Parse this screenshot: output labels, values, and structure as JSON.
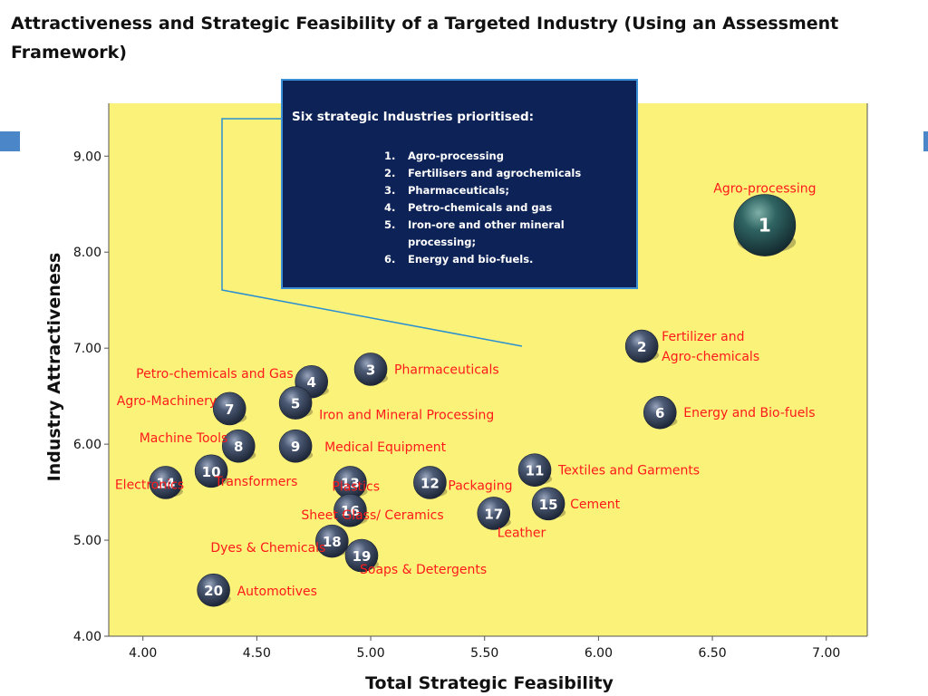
{
  "slide": {
    "title": "Attractiveness and Strategic Feasibility of a Targeted Industry (Using   an Assessment Framework)"
  },
  "callout": {
    "title": "Six strategic Industries prioritised:",
    "items": [
      {
        "num": "1.",
        "text": "Agro-processing"
      },
      {
        "num": "2.",
        "text": "Fertilisers and agrochemicals"
      },
      {
        "num": "3.",
        "text": "Pharmaceuticals;"
      },
      {
        "num": "4.",
        "text": " Petro-chemicals and gas"
      },
      {
        "num": "5.",
        "text": "Iron-ore and other mineral processing;"
      },
      {
        "num": "6.",
        "text": "Energy and bio-fuels."
      }
    ]
  },
  "colors": {
    "plot_background": "#fbf27a",
    "bubble": "#2f3d55",
    "label_text": "#ff1a1a",
    "callout_background": "#0d2357",
    "callout_border": "#3a8fd6",
    "connector": "#2a8fd0",
    "accent_square": "#4a86c8"
  },
  "chart_data": {
    "type": "scatter",
    "title": "",
    "xlabel": "Total Strategic Feasibility",
    "ylabel": "Industry Attractiveness",
    "xlim": [
      3.85,
      7.18
    ],
    "ylim": [
      4.0,
      9.55
    ],
    "xticks": [
      "4.00",
      "4.50",
      "5.00",
      "5.50",
      "6.00",
      "6.50",
      "7.00"
    ],
    "yticks": [
      "4.00",
      "5.00",
      "6.00",
      "7.00",
      "8.00",
      "9.00"
    ],
    "grid": false,
    "points": [
      {
        "id": "1",
        "label": "Agro-processing",
        "x": 6.73,
        "y": 8.28
      },
      {
        "id": "2",
        "label": "Fertilizer and Agro-chemicals",
        "x": 6.19,
        "y": 7.02
      },
      {
        "id": "3",
        "label": "Pharmaceuticals",
        "x": 5.0,
        "y": 6.78
      },
      {
        "id": "4",
        "label": "Petro-chemicals and Gas",
        "x": 4.74,
        "y": 6.65
      },
      {
        "id": "5",
        "label": "Iron and Mineral Processing",
        "x": 4.67,
        "y": 6.43
      },
      {
        "id": "6",
        "label": "Energy and Bio-fuels",
        "x": 6.27,
        "y": 6.33
      },
      {
        "id": "7",
        "label": "Agro-Machinery",
        "x": 4.38,
        "y": 6.37
      },
      {
        "id": "8",
        "label": "Machine Tools",
        "x": 4.42,
        "y": 5.98
      },
      {
        "id": "9",
        "label": "Medical Equipment",
        "x": 4.67,
        "y": 5.98
      },
      {
        "id": "10",
        "label": "Transformers",
        "x": 4.3,
        "y": 5.72
      },
      {
        "id": "11",
        "label": "Textiles and Garments",
        "x": 5.72,
        "y": 5.73
      },
      {
        "id": "12",
        "label": "Packaging",
        "x": 5.26,
        "y": 5.6
      },
      {
        "id": "13",
        "label": "Plastics",
        "x": 4.91,
        "y": 5.6
      },
      {
        "id": "14",
        "label": "Electronics",
        "x": 4.1,
        "y": 5.6
      },
      {
        "id": "15",
        "label": "Cement",
        "x": 5.78,
        "y": 5.38
      },
      {
        "id": "16",
        "label": "Sheet Glass/ Ceramics",
        "x": 4.91,
        "y": 5.31
      },
      {
        "id": "17",
        "label": "Leather",
        "x": 5.54,
        "y": 5.28
      },
      {
        "id": "18",
        "label": "Dyes & Chemicals",
        "x": 4.83,
        "y": 4.99
      },
      {
        "id": "19",
        "label": "Soaps & Detergents",
        "x": 4.96,
        "y": 4.84
      },
      {
        "id": "20",
        "label": "Automotives",
        "x": 4.31,
        "y": 4.48
      }
    ]
  }
}
